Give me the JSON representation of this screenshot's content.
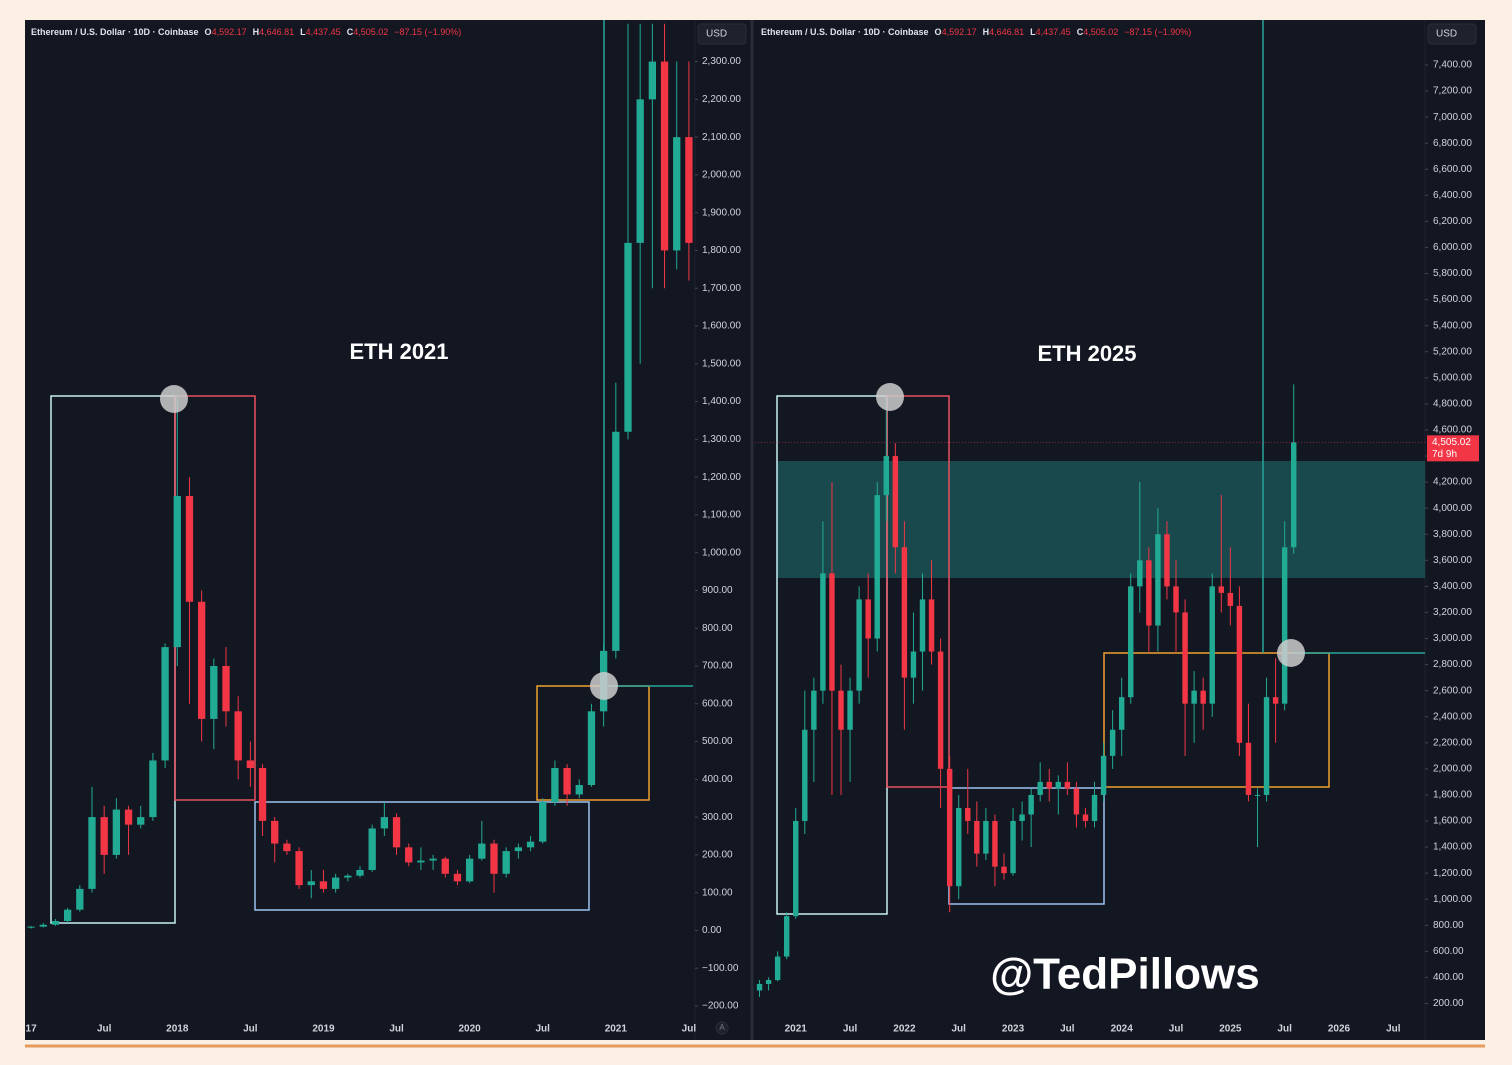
{
  "watermark": "@TedPillows",
  "chart_data": [
    {
      "type": "candlestick",
      "title": "ETH 2021",
      "header": {
        "symbol": "Ethereum / U.S. Dollar · 10D · Coinbase",
        "ohlc": [
          {
            "key": "O",
            "value": "4,592.17"
          },
          {
            "key": "H",
            "value": "4,646.81"
          },
          {
            "key": "L",
            "value": "4,437.45"
          },
          {
            "key": "C",
            "value": "4,505.02"
          }
        ],
        "change": "−87.15 (−1.90%)"
      },
      "currency": "USD",
      "scale_button": "A",
      "up_color": "#22ab94",
      "down_color": "#f23645",
      "grid": false,
      "categories": [
        "17",
        null,
        null,
        null,
        null,
        null,
        "Jul",
        null,
        null,
        null,
        null,
        null,
        "2018",
        null,
        null,
        null,
        null,
        null,
        "Jul",
        null,
        null,
        null,
        null,
        null,
        "2019",
        null,
        null,
        null,
        null,
        null,
        "Jul",
        null,
        null,
        null,
        null,
        null,
        "2020",
        null,
        null,
        null,
        null,
        null,
        "Jul",
        null,
        null,
        null,
        null,
        null,
        "2021",
        null,
        null,
        null,
        null,
        null,
        "Jul"
      ],
      "open": [
        8,
        10,
        15,
        25,
        55,
        110,
        300,
        200,
        320,
        280,
        300,
        450,
        750,
        1150,
        870,
        560,
        700,
        580,
        450,
        430,
        290,
        230,
        210,
        120,
        130,
        110,
        140,
        145,
        160,
        270,
        300,
        220,
        180,
        185,
        190,
        150,
        130,
        190,
        230,
        150,
        210,
        220,
        235,
        340,
        430,
        360,
        385,
        580,
        740,
        1320,
        1820,
        2200,
        2300,
        1800,
        2100
      ],
      "high": [
        12,
        20,
        30,
        60,
        120,
        380,
        330,
        350,
        330,
        330,
        470,
        760,
        1420,
        1200,
        900,
        720,
        750,
        620,
        500,
        440,
        300,
        240,
        220,
        160,
        160,
        150,
        150,
        170,
        280,
        340,
        310,
        230,
        220,
        200,
        195,
        160,
        200,
        290,
        240,
        220,
        230,
        250,
        350,
        450,
        440,
        400,
        600,
        760,
        1450,
        2400,
        2400,
        2400,
        2400,
        2300,
        2300
      ],
      "low": [
        5,
        8,
        12,
        20,
        50,
        100,
        150,
        190,
        200,
        270,
        290,
        430,
        700,
        600,
        500,
        480,
        540,
        400,
        380,
        250,
        180,
        200,
        110,
        85,
        100,
        100,
        130,
        140,
        155,
        250,
        200,
        170,
        160,
        160,
        140,
        120,
        125,
        185,
        100,
        140,
        190,
        210,
        230,
        330,
        330,
        350,
        380,
        540,
        720,
        1300,
        1500,
        1700,
        1700,
        1750,
        1720
      ],
      "close": [
        10,
        15,
        25,
        55,
        110,
        300,
        200,
        320,
        280,
        300,
        450,
        750,
        1150,
        870,
        560,
        700,
        580,
        450,
        430,
        290,
        230,
        210,
        120,
        130,
        110,
        140,
        145,
        160,
        270,
        300,
        220,
        180,
        185,
        190,
        150,
        130,
        190,
        230,
        150,
        210,
        220,
        235,
        340,
        430,
        360,
        385,
        580,
        740,
        1320,
        1820,
        2200,
        2300,
        1800,
        2100,
        1820
      ],
      "ylim": [
        -290,
        2410
      ],
      "yticks": [
        {
          "value": -200,
          "label": "−200.00"
        },
        {
          "value": -100,
          "label": "−100.00"
        },
        {
          "value": 0,
          "label": "0.00"
        },
        {
          "value": 100,
          "label": "100.00"
        },
        {
          "value": 200,
          "label": "200.00"
        },
        {
          "value": 300,
          "label": "300.00"
        },
        {
          "value": 400,
          "label": "400.00"
        },
        {
          "value": 500,
          "label": "500.00"
        },
        {
          "value": 600,
          "label": "600.00"
        },
        {
          "value": 700,
          "label": "700.00"
        },
        {
          "value": 800,
          "label": "800.00"
        },
        {
          "value": 900,
          "label": "900.00"
        },
        {
          "value": 1000,
          "label": "1,000.00"
        },
        {
          "value": 1100,
          "label": "1,100.00"
        },
        {
          "value": 1200,
          "label": "1,200.00"
        },
        {
          "value": 1300,
          "label": "1,300.00"
        },
        {
          "value": 1400,
          "label": "1,400.00"
        },
        {
          "value": 1500,
          "label": "1,500.00"
        },
        {
          "value": 1600,
          "label": "1,600.00"
        },
        {
          "value": 1700,
          "label": "1,700.00"
        },
        {
          "value": 1800,
          "label": "1,800.00"
        },
        {
          "value": 1900,
          "label": "1,900.00"
        },
        {
          "value": 2000,
          "label": "2,000.00"
        },
        {
          "value": 2100,
          "label": "2,100.00"
        },
        {
          "value": 2200,
          "label": "2,200.00"
        },
        {
          "value": 2300,
          "label": "2,300.00"
        }
      ]
    },
    {
      "type": "candlestick",
      "title": "ETH 2025",
      "header": {
        "symbol": "Ethereum / U.S. Dollar · 10D · Coinbase",
        "ohlc": [
          {
            "key": "O",
            "value": "4,592.17"
          },
          {
            "key": "H",
            "value": "4,646.81"
          },
          {
            "key": "L",
            "value": "4,437.45"
          },
          {
            "key": "C",
            "value": "4,505.02"
          }
        ],
        "change": "−87.15 (−1.90%)"
      },
      "currency": "USD",
      "up_color": "#22ab94",
      "down_color": "#f23645",
      "grid": false,
      "last_price": {
        "value": 4505.02,
        "label": "4,505.02"
      },
      "countdown": "7d 9h",
      "categories": [
        null,
        null,
        null,
        null,
        "2021",
        null,
        null,
        null,
        null,
        null,
        "Jul",
        null,
        null,
        null,
        null,
        null,
        "2022",
        null,
        null,
        null,
        null,
        null,
        "Jul",
        null,
        null,
        null,
        null,
        null,
        "2023",
        null,
        null,
        null,
        null,
        null,
        "Jul",
        null,
        null,
        null,
        null,
        null,
        "2024",
        null,
        null,
        null,
        null,
        null,
        "Jul",
        null,
        null,
        null,
        null,
        null,
        "2025",
        null,
        null,
        null,
        null,
        null,
        "Jul",
        null,
        null,
        null,
        null,
        null,
        "2026",
        null,
        null,
        null,
        null,
        null,
        "Jul",
        null,
        null,
        null
      ],
      "open": [
        300,
        350,
        380,
        560,
        870,
        1600,
        2300,
        2600,
        3500,
        2600,
        2300,
        2600,
        3300,
        3000,
        4100,
        4400,
        3700,
        2700,
        2900,
        3300,
        2900,
        2000,
        1100,
        1700,
        1600,
        1350,
        1600,
        1250,
        1200,
        1600,
        1650,
        1800,
        1900,
        1850,
        1900,
        1850,
        1650,
        1600,
        1800,
        2100,
        2300,
        2550,
        3400,
        3600,
        3100,
        3800,
        3400,
        3200,
        2500,
        2600,
        2500,
        3400,
        3350,
        3250,
        2200,
        1800,
        1800,
        2550,
        2500,
        3700,
        null,
        null,
        null,
        null,
        null,
        null,
        null,
        null,
        null,
        null,
        null,
        null,
        null,
        null
      ],
      "high": [
        380,
        400,
        600,
        900,
        1700,
        2600,
        2700,
        3900,
        4200,
        2800,
        2700,
        3400,
        3500,
        4200,
        4850,
        4500,
        3900,
        3200,
        3500,
        3600,
        3000,
        2100,
        1800,
        2000,
        1750,
        1700,
        1650,
        1350,
        1700,
        1750,
        1850,
        2050,
        2000,
        1950,
        2050,
        1900,
        1700,
        1900,
        2200,
        2450,
        2700,
        3500,
        4200,
        3700,
        4000,
        3900,
        3600,
        3300,
        2750,
        2700,
        3500,
        4100,
        3700,
        3400,
        2500,
        1850,
        2700,
        2850,
        3900,
        4950,
        null,
        null,
        null,
        null,
        null,
        null,
        null,
        null,
        null,
        null,
        null,
        null,
        null,
        null
      ],
      "low": [
        250,
        300,
        370,
        540,
        850,
        1500,
        1900,
        2500,
        1800,
        1800,
        1900,
        2500,
        2700,
        2900,
        3900,
        3500,
        2300,
        2500,
        2600,
        2800,
        1700,
        900,
        1000,
        1500,
        1250,
        1300,
        1100,
        1150,
        1180,
        1450,
        1400,
        1750,
        1750,
        1650,
        1800,
        1550,
        1550,
        1550,
        1750,
        2000,
        2100,
        2500,
        3200,
        2900,
        2900,
        3300,
        2900,
        2100,
        2200,
        2300,
        2400,
        3200,
        3100,
        2100,
        1750,
        1400,
        1750,
        2200,
        2450,
        3650,
        null,
        null,
        null,
        null,
        null,
        null,
        null,
        null,
        null,
        null,
        null,
        null,
        null,
        null
      ],
      "close": [
        350,
        380,
        560,
        870,
        1600,
        2300,
        2600,
        3500,
        2600,
        2300,
        2600,
        3300,
        3000,
        4100,
        4400,
        3700,
        2700,
        2900,
        3300,
        2900,
        2000,
        1100,
        1700,
        1600,
        1350,
        1600,
        1250,
        1200,
        1600,
        1650,
        1800,
        1900,
        1850,
        1900,
        1850,
        1650,
        1600,
        1800,
        2100,
        2300,
        2550,
        3400,
        3600,
        3100,
        3800,
        3400,
        3200,
        2500,
        2600,
        2500,
        3400,
        3350,
        3250,
        2200,
        1800,
        1800,
        2550,
        2500,
        3700,
        4505,
        null,
        null,
        null,
        null,
        null,
        null,
        null,
        null,
        null,
        null,
        null,
        null,
        null,
        null
      ],
      "ylim": [
        -80,
        7745
      ],
      "yticks": [
        {
          "value": 200,
          "label": "200.00"
        },
        {
          "value": 400,
          "label": "400.00"
        },
        {
          "value": 600,
          "label": "600.00"
        },
        {
          "value": 800,
          "label": "800.00"
        },
        {
          "value": 1000,
          "label": "1,000.00"
        },
        {
          "value": 1200,
          "label": "1,200.00"
        },
        {
          "value": 1400,
          "label": "1,400.00"
        },
        {
          "value": 1600,
          "label": "1,600.00"
        },
        {
          "value": 1800,
          "label": "1,800.00"
        },
        {
          "value": 2000,
          "label": "2,000.00"
        },
        {
          "value": 2200,
          "label": "2,200.00"
        },
        {
          "value": 2400,
          "label": "2,400.00"
        },
        {
          "value": 2600,
          "label": "2,600.00"
        },
        {
          "value": 2800,
          "label": "2,800.00"
        },
        {
          "value": 3000,
          "label": "3,000.00"
        },
        {
          "value": 3200,
          "label": "3,200.00"
        },
        {
          "value": 3400,
          "label": "3,400.00"
        },
        {
          "value": 3600,
          "label": "3,600.00"
        },
        {
          "value": 3800,
          "label": "3,800.00"
        },
        {
          "value": 4000,
          "label": "4,000.00"
        },
        {
          "value": 4200,
          "label": "4,200.00"
        },
        {
          "value": 4400,
          "label": "4,400.00"
        },
        {
          "value": 4600,
          "label": "4,600.00"
        },
        {
          "value": 4800,
          "label": "4,800.00"
        },
        {
          "value": 5000,
          "label": "5,000.00"
        },
        {
          "value": 5200,
          "label": "5,200.00"
        },
        {
          "value": 5400,
          "label": "5,400.00"
        },
        {
          "value": 5600,
          "label": "5,600.00"
        },
        {
          "value": 5800,
          "label": "5,800.00"
        },
        {
          "value": 6000,
          "label": "6,000.00"
        },
        {
          "value": 6200,
          "label": "6,200.00"
        },
        {
          "value": 6400,
          "label": "6,400.00"
        },
        {
          "value": 6600,
          "label": "6,600.00"
        },
        {
          "value": 6800,
          "label": "6,800.00"
        },
        {
          "value": 7000,
          "label": "7,000.00"
        },
        {
          "value": 7200,
          "label": "7,200.00"
        },
        {
          "value": 7400,
          "label": "7,400.00"
        }
      ]
    }
  ]
}
